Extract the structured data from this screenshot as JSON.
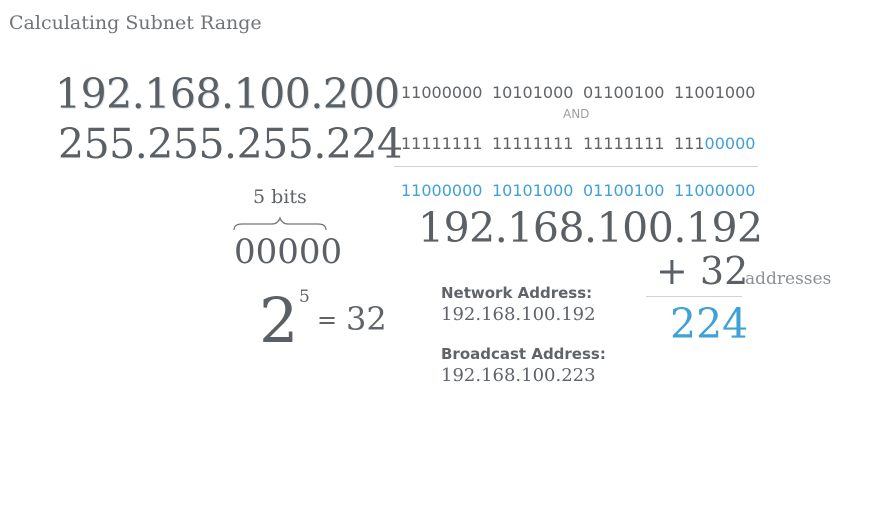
{
  "title": "Calculating Subnet Range",
  "ip_address": "192.168.100.200",
  "subnet_mask": "255.255.255.224",
  "binary": {
    "ip_octets": [
      "11000000",
      "10101000",
      "01100100",
      "11001000"
    ],
    "operator": "AND",
    "mask_octets_prefix": [
      "11111111",
      "11111111",
      "11111111",
      "111"
    ],
    "mask_host_bits": "00000",
    "result_octets": [
      "11000000",
      "10101000",
      "01100100",
      "11000000"
    ]
  },
  "result_ip": "192.168.100.192",
  "host_bits": {
    "label": "5 bits",
    "zeros": "00000",
    "power_base": "2",
    "power_exponent": "5",
    "equals": "=",
    "power_value": "32"
  },
  "sum": {
    "plus_value": "+ 32",
    "unit_label": "addresses",
    "result": "224"
  },
  "network": {
    "label": "Network Address:",
    "value": "192.168.100.192"
  },
  "broadcast": {
    "label": "Broadcast Address:",
    "value": "192.168.100.223"
  },
  "colors": {
    "text": "#5a6065",
    "accent": "#3fa1d6",
    "divider": "#cfd3d6"
  }
}
